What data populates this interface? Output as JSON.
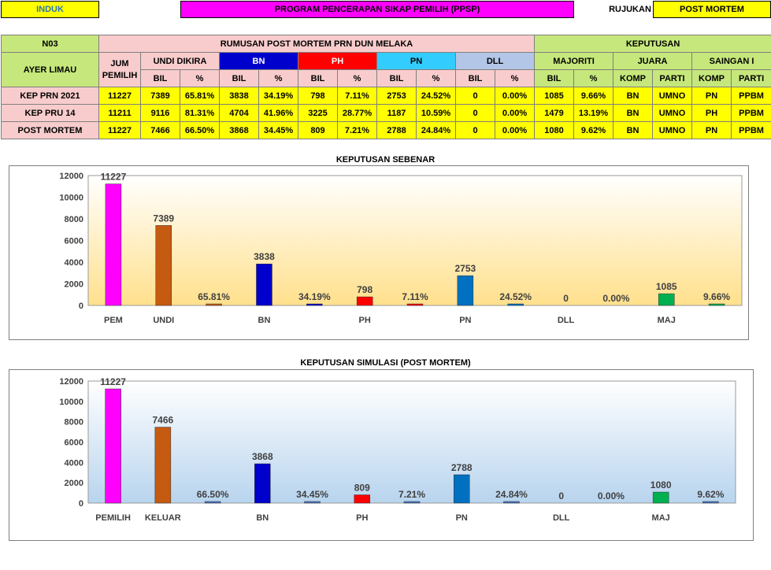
{
  "top": {
    "induk": "INDUK",
    "title": "PROGRAM PENCERAPAN SIKAP PEMILIH (PPSP)",
    "rujukan": "RUJUKAN",
    "post_mortem": "POST MORTEM"
  },
  "table": {
    "code": "N03",
    "seat": "AYER LIMAU",
    "section": "RUMUSAN POST MORTEM PRN DUN MELAKA",
    "decision": "KEPUTUSAN",
    "h": {
      "jum": "JUM",
      "pemilih": "PEMILIH",
      "undi": "UNDI DIKIRA",
      "bn": "BN",
      "ph": "PH",
      "pn": "PN",
      "dll": "DLL",
      "majoriti": "MAJORITI",
      "juara": "JUARA",
      "saingan": "SAINGAN I",
      "bil": "BIL",
      "pct": "%",
      "komp": "KOMP",
      "parti": "PARTI"
    },
    "rows": [
      {
        "label": "KEP PRN 2021",
        "c": [
          "11227",
          "7389",
          "65.81%",
          "3838",
          "34.19%",
          "798",
          "7.11%",
          "2753",
          "24.52%",
          "0",
          "0.00%",
          "1085",
          "9.66%",
          "BN",
          "UMNO",
          "PN",
          "PPBM"
        ]
      },
      {
        "label": "KEP PRU 14",
        "c": [
          "11211",
          "9116",
          "81.31%",
          "4704",
          "41.96%",
          "3225",
          "28.77%",
          "1187",
          "10.59%",
          "0",
          "0.00%",
          "1479",
          "13.19%",
          "BN",
          "UMNO",
          "PH",
          "PPBM"
        ]
      },
      {
        "label": "POST MORTEM",
        "c": [
          "11227",
          "7466",
          "66.50%",
          "3868",
          "34.45%",
          "809",
          "7.21%",
          "2788",
          "24.84%",
          "0",
          "0.00%",
          "1080",
          "9.62%",
          "BN",
          "UMNO",
          "PN",
          "PPBM"
        ]
      }
    ]
  },
  "chart_data": [
    {
      "type": "bar",
      "title": "KEPUTUSAN SEBENAR",
      "ylim": [
        0,
        12000
      ],
      "yticks": [
        "0",
        "2000",
        "4000",
        "6000",
        "8000",
        "10000",
        "12000"
      ],
      "categories": [
        "PEM",
        "UNDI",
        "BN",
        "PH",
        "PN",
        "DLL",
        "MAJ"
      ],
      "bars": [
        {
          "value": 11227,
          "label": "11227",
          "color": "#ff00ff"
        },
        {
          "value": 7389,
          "label": "7389",
          "color": "#c55a11"
        },
        {
          "value": 65.81,
          "label": "65.81%",
          "color": "#c55a11"
        },
        {
          "value": 3838,
          "label": "3838",
          "color": "#0000cc"
        },
        {
          "value": 34.19,
          "label": "34.19%",
          "color": "#0000cc"
        },
        {
          "value": 798,
          "label": "798",
          "color": "#ff0000"
        },
        {
          "value": 7.11,
          "label": "7.11%",
          "color": "#ff0000"
        },
        {
          "value": 2753,
          "label": "2753",
          "color": "#0070c0"
        },
        {
          "value": 24.52,
          "label": "24.52%",
          "color": "#0070c0"
        },
        {
          "value": 0,
          "label": "0",
          "color": "#808080"
        },
        {
          "value": 0,
          "label": "0.00%",
          "color": "#808080"
        },
        {
          "value": 1085,
          "label": "1085",
          "color": "#00b050"
        },
        {
          "value": 9.66,
          "label": "9.66%",
          "color": "#00b050"
        }
      ],
      "background": [
        "#ffffff",
        "#ffe08c"
      ]
    },
    {
      "type": "bar",
      "title": "KEPUTUSAN SIMULASI (POST MORTEM)",
      "ylim": [
        0,
        12000
      ],
      "yticks": [
        "0",
        "2000",
        "4000",
        "6000",
        "8000",
        "10000",
        "12000"
      ],
      "categories": [
        "PEMILIH",
        "KELUAR",
        "BN",
        "PH",
        "PN",
        "DLL",
        "MAJ"
      ],
      "bars": [
        {
          "value": 11227,
          "label": "11227",
          "color": "#ff00ff"
        },
        {
          "value": 7466,
          "label": "7466",
          "color": "#c55a11"
        },
        {
          "value": 66.5,
          "label": "66.50%",
          "color": "#4472c4"
        },
        {
          "value": 3868,
          "label": "3868",
          "color": "#0000cc"
        },
        {
          "value": 34.45,
          "label": "34.45%",
          "color": "#4472c4"
        },
        {
          "value": 809,
          "label": "809",
          "color": "#ff0000"
        },
        {
          "value": 7.21,
          "label": "7.21%",
          "color": "#4472c4"
        },
        {
          "value": 2788,
          "label": "2788",
          "color": "#0070c0"
        },
        {
          "value": 24.84,
          "label": "24.84%",
          "color": "#4472c4"
        },
        {
          "value": 0,
          "label": "0",
          "color": "#808080"
        },
        {
          "value": 0,
          "label": "0.00%",
          "color": "#4472c4"
        },
        {
          "value": 1080,
          "label": "1080",
          "color": "#00b050"
        },
        {
          "value": 9.62,
          "label": "9.62%",
          "color": "#4472c4"
        }
      ],
      "background": [
        "#ffffff",
        "#b8d4ee"
      ]
    }
  ]
}
